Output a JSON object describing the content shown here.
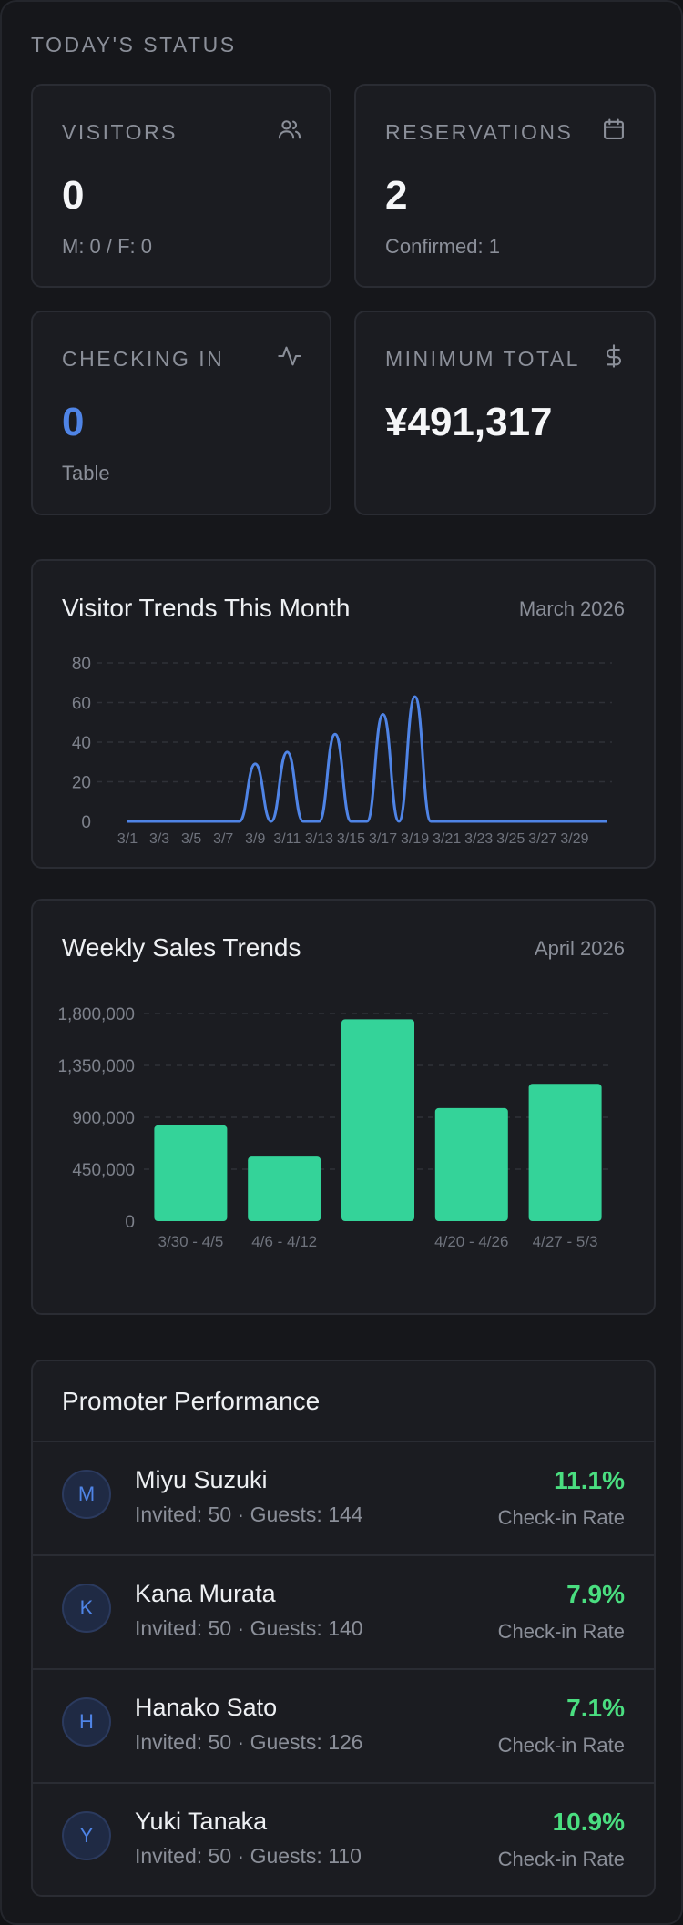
{
  "section_title": "TODAY'S STATUS",
  "stats": {
    "visitors": {
      "label": "VISITORS",
      "value": "0",
      "sub": "M: 0 / F: 0",
      "icon": "users-icon"
    },
    "reservations": {
      "label": "RESERVATIONS",
      "value": "2",
      "sub": "Confirmed: 1",
      "icon": "calendar-icon"
    },
    "checking_in": {
      "label": "CHECKING IN",
      "value": "0",
      "sub": "Table",
      "icon": "activity-icon"
    },
    "minimum_total": {
      "label": "MINIMUM TOTAL",
      "value": "¥491,317",
      "icon": "dollar-icon"
    }
  },
  "visitor_trends": {
    "title": "Visitor Trends This Month",
    "period": "March 2026"
  },
  "weekly_sales": {
    "title": "Weekly Sales Trends",
    "period": "April 2026"
  },
  "chart_data": [
    {
      "type": "line",
      "title": "Visitor Trends This Month",
      "ylim": [
        0,
        80
      ],
      "yticks": [
        0,
        20,
        40,
        60,
        80
      ],
      "x_tick_labels": [
        "3/1",
        "3/3",
        "3/5",
        "3/7",
        "3/9",
        "3/11",
        "3/13",
        "3/15",
        "3/17",
        "3/19",
        "3/21",
        "3/23",
        "3/25",
        "3/27",
        "3/29"
      ],
      "x": [
        "3/1",
        "3/2",
        "3/3",
        "3/4",
        "3/5",
        "3/6",
        "3/7",
        "3/8",
        "3/9",
        "3/10",
        "3/11",
        "3/12",
        "3/13",
        "3/14",
        "3/15",
        "3/16",
        "3/17",
        "3/18",
        "3/19",
        "3/20",
        "3/21",
        "3/22",
        "3/23",
        "3/24",
        "3/25",
        "3/26",
        "3/27",
        "3/28",
        "3/29",
        "3/30",
        "3/31"
      ],
      "values": [
        0,
        0,
        0,
        0,
        0,
        0,
        0,
        0,
        29,
        0,
        35,
        0,
        0,
        44,
        0,
        0,
        54,
        0,
        63,
        0,
        0,
        0,
        0,
        0,
        0,
        0,
        0,
        0,
        0,
        0,
        0
      ],
      "grid": true,
      "color": "#4f84e6"
    },
    {
      "type": "bar",
      "title": "Weekly Sales Trends",
      "categories": [
        "3/30 - 4/5",
        "4/6 - 4/12",
        "4/13 - 4/19",
        "4/20 - 4/26",
        "4/27 - 5/3"
      ],
      "x_tick_labels": [
        "3/30 - 4/5",
        "4/6 - 4/12",
        "",
        "4/20 - 4/26",
        "4/27 - 5/3"
      ],
      "values": [
        830000,
        560000,
        1750000,
        980000,
        1190000
      ],
      "ylim": [
        0,
        1800000
      ],
      "ytick_labels": [
        "0",
        "450,000",
        "900,000",
        "1,350,000",
        "1,800,000"
      ],
      "yticks": [
        0,
        450000,
        900000,
        1350000,
        1800000
      ],
      "grid": true,
      "color": "#34d399"
    }
  ],
  "promoters": {
    "title": "Promoter Performance",
    "rate_label": "Check-in Rate",
    "items": [
      {
        "initial": "M",
        "name": "Miyu Suzuki",
        "meta": "Invited: 50 · Guests: 144",
        "rate": "11.1%"
      },
      {
        "initial": "K",
        "name": "Kana Murata",
        "meta": "Invited: 50 · Guests: 140",
        "rate": "7.9%"
      },
      {
        "initial": "H",
        "name": "Hanako Sato",
        "meta": "Invited: 50 · Guests: 126",
        "rate": "7.1%"
      },
      {
        "initial": "Y",
        "name": "Yuki Tanaka",
        "meta": "Invited: 50 · Guests: 110",
        "rate": "10.9%"
      }
    ]
  }
}
